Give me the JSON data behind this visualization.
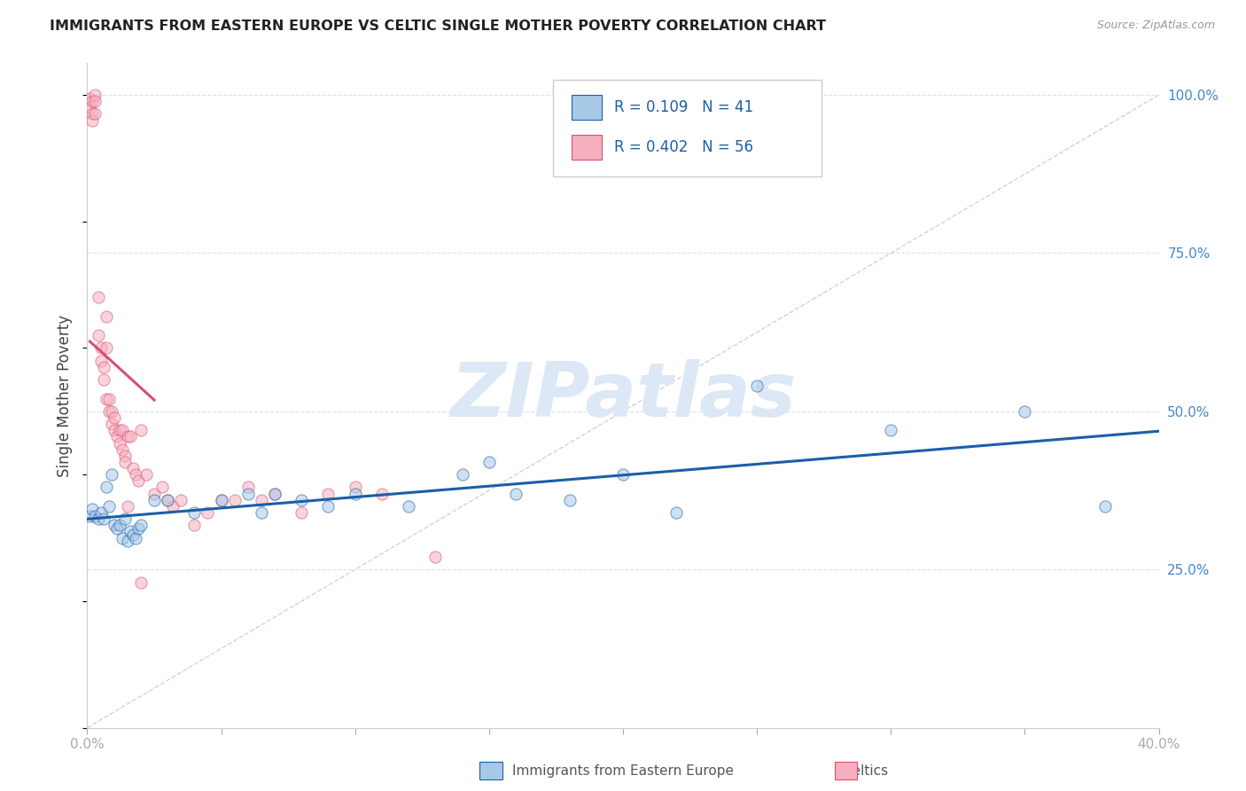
{
  "title": "IMMIGRANTS FROM EASTERN EUROPE VS CELTIC SINGLE MOTHER POVERTY CORRELATION CHART",
  "source": "Source: ZipAtlas.com",
  "ylabel": "Single Mother Poverty",
  "ylabel_right_labels": [
    "100.0%",
    "75.0%",
    "50.0%",
    "25.0%"
  ],
  "ylabel_right_values": [
    1.0,
    0.75,
    0.5,
    0.25
  ],
  "xlim": [
    0.0,
    0.4
  ],
  "ylim": [
    0.0,
    1.05
  ],
  "blue_R": 0.109,
  "blue_N": 41,
  "pink_R": 0.402,
  "pink_N": 56,
  "blue_color": "#a8c8e8",
  "blue_line_color": "#1a5fa8",
  "pink_color": "#f5b0c0",
  "pink_line_color": "#d8506a",
  "diagonal_color": "#d8c8d8",
  "watermark_color": "#dce8f5",
  "blue_points_x": [
    0.001,
    0.002,
    0.003,
    0.004,
    0.005,
    0.006,
    0.007,
    0.008,
    0.009,
    0.01,
    0.011,
    0.012,
    0.013,
    0.014,
    0.015,
    0.016,
    0.017,
    0.018,
    0.019,
    0.02,
    0.025,
    0.03,
    0.04,
    0.05,
    0.06,
    0.065,
    0.07,
    0.08,
    0.09,
    0.1,
    0.12,
    0.14,
    0.15,
    0.16,
    0.18,
    0.2,
    0.22,
    0.25,
    0.3,
    0.35,
    0.38
  ],
  "blue_points_y": [
    0.335,
    0.345,
    0.335,
    0.33,
    0.34,
    0.33,
    0.38,
    0.35,
    0.4,
    0.32,
    0.315,
    0.32,
    0.3,
    0.33,
    0.295,
    0.31,
    0.305,
    0.3,
    0.315,
    0.32,
    0.36,
    0.36,
    0.34,
    0.36,
    0.37,
    0.34,
    0.37,
    0.36,
    0.35,
    0.37,
    0.35,
    0.4,
    0.42,
    0.37,
    0.36,
    0.4,
    0.34,
    0.54,
    0.47,
    0.5,
    0.35
  ],
  "pink_points_x": [
    0.001,
    0.001,
    0.002,
    0.002,
    0.002,
    0.003,
    0.003,
    0.003,
    0.004,
    0.004,
    0.005,
    0.005,
    0.006,
    0.006,
    0.007,
    0.007,
    0.007,
    0.008,
    0.008,
    0.009,
    0.009,
    0.01,
    0.01,
    0.011,
    0.012,
    0.012,
    0.013,
    0.013,
    0.014,
    0.014,
    0.015,
    0.016,
    0.017,
    0.018,
    0.019,
    0.02,
    0.022,
    0.025,
    0.028,
    0.03,
    0.032,
    0.035,
    0.04,
    0.045,
    0.05,
    0.055,
    0.06,
    0.065,
    0.07,
    0.08,
    0.09,
    0.1,
    0.11,
    0.13,
    0.015,
    0.02
  ],
  "pink_points_y": [
    0.995,
    0.98,
    0.99,
    0.97,
    0.96,
    0.97,
    1.0,
    0.99,
    0.68,
    0.62,
    0.6,
    0.58,
    0.55,
    0.57,
    0.52,
    0.6,
    0.65,
    0.52,
    0.5,
    0.5,
    0.48,
    0.47,
    0.49,
    0.46,
    0.45,
    0.47,
    0.44,
    0.47,
    0.43,
    0.42,
    0.46,
    0.46,
    0.41,
    0.4,
    0.39,
    0.47,
    0.4,
    0.37,
    0.38,
    0.36,
    0.35,
    0.36,
    0.32,
    0.34,
    0.36,
    0.36,
    0.38,
    0.36,
    0.37,
    0.34,
    0.37,
    0.38,
    0.37,
    0.27,
    0.35,
    0.23
  ],
  "grid_color": "#e0e0ea",
  "background_color": "#ffffff",
  "marker_size": 90,
  "marker_alpha": 0.55,
  "marker_edge_width": 0.8
}
